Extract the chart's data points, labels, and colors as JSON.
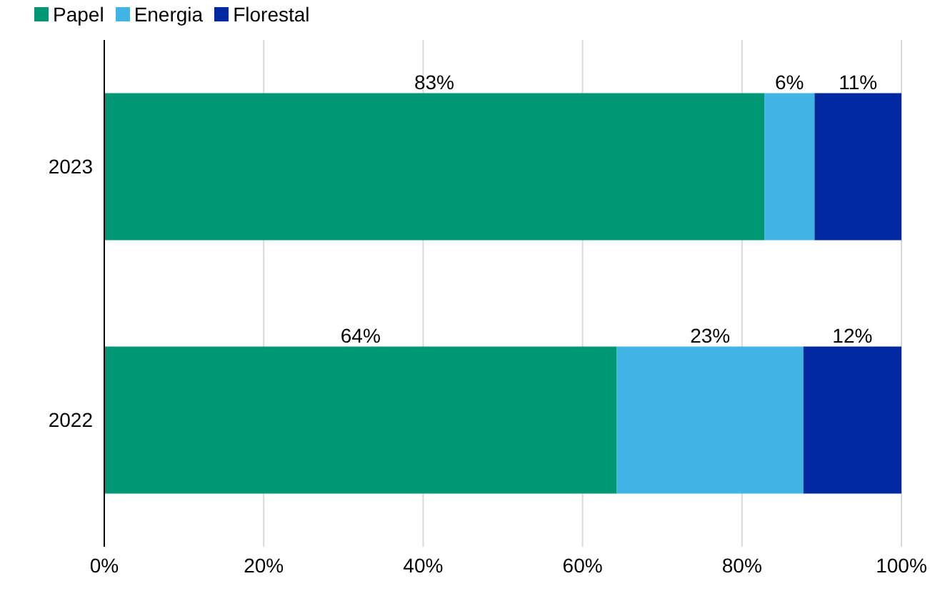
{
  "chart_data": {
    "type": "bar",
    "orientation": "horizontal",
    "stacked": true,
    "categories": [
      "2023",
      "2022"
    ],
    "series": [
      {
        "name": "Papel",
        "color": "#009874",
        "values": [
          82.8,
          64.3
        ],
        "value_labels": [
          "83%",
          "64%"
        ]
      },
      {
        "name": "Energia",
        "color": "#41b6e6",
        "values": [
          6.3,
          23.4
        ],
        "value_labels": [
          "6%",
          "23%"
        ]
      },
      {
        "name": "Florestal",
        "color": "#0028a0",
        "values": [
          10.9,
          12.3
        ],
        "value_labels": [
          "11%",
          "12%"
        ]
      }
    ],
    "xlim": [
      0,
      100
    ],
    "xticks": [
      {
        "value": 0,
        "label": "0%"
      },
      {
        "value": 20,
        "label": "20%"
      },
      {
        "value": 40,
        "label": "40%"
      },
      {
        "value": 60,
        "label": "60%"
      },
      {
        "value": 80,
        "label": "80%"
      },
      {
        "value": 100,
        "label": "100%"
      }
    ],
    "grid": "x",
    "legend": "top left"
  }
}
